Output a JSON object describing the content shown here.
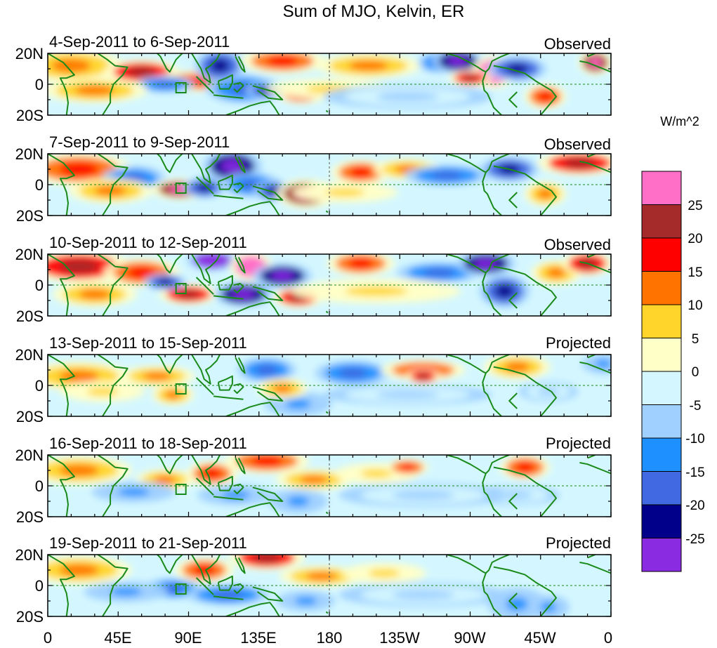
{
  "figure": {
    "title": "Sum of MJO, Kelvin, ER",
    "lat_labels": [
      "20N",
      "0",
      "20S"
    ],
    "lon_labels": [
      "0",
      "45E",
      "90E",
      "135E",
      "180",
      "135W",
      "90W",
      "45W",
      "0"
    ]
  },
  "panels": [
    {
      "dates": "4-Sep-2011 to 6-Sep-2011",
      "kind": "Observed"
    },
    {
      "dates": "7-Sep-2011 to 9-Sep-2011",
      "kind": "Observed"
    },
    {
      "dates": "10-Sep-2011 to 12-Sep-2011",
      "kind": "Observed"
    },
    {
      "dates": "13-Sep-2011 to 15-Sep-2011",
      "kind": "Projected"
    },
    {
      "dates": "16-Sep-2011 to 18-Sep-2011",
      "kind": "Projected"
    },
    {
      "dates": "19-Sep-2011 to 21-Sep-2011",
      "kind": "Projected"
    }
  ],
  "colorbar": {
    "unit": "W/m^2",
    "labels": [
      "25",
      "20",
      "15",
      "10",
      "5",
      "0",
      "-5",
      "-10",
      "-15",
      "-20",
      "-25"
    ],
    "colors": [
      "#ff6ec7",
      "#a52a2a",
      "#ff0000",
      "#ff7300",
      "#ffd52b",
      "#ffffc8",
      "#d4f7ff",
      "#a0d0ff",
      "#1e90ff",
      "#4169e1",
      "#00008b",
      "#8a2be2"
    ]
  },
  "colors": {
    "coast": "#1a8a1a",
    "frame": "#000000",
    "equator": "#1a8a1a"
  }
}
